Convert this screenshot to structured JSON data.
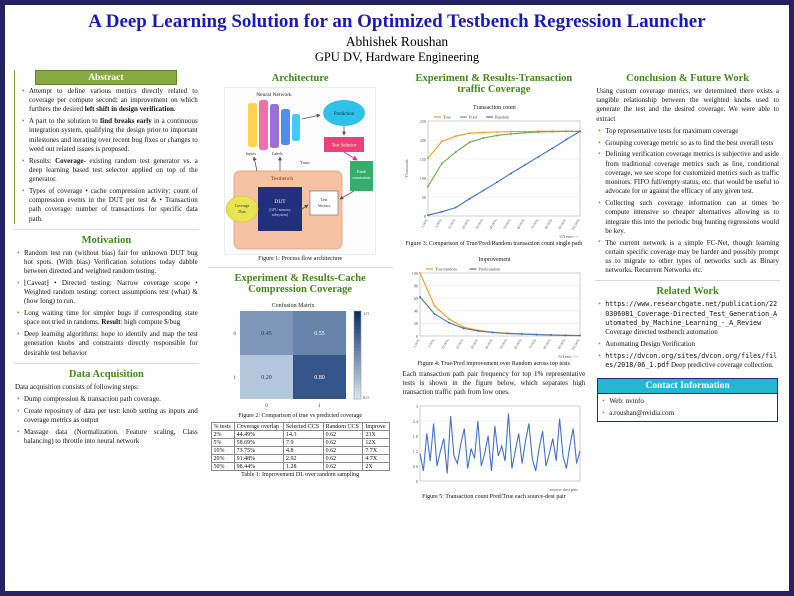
{
  "poster": {
    "title": "A Deep Learning Solution for an Optimized Testbench Regression Launcher",
    "author": "Abhishek Roushan",
    "affiliation": "GPU DV, Hardware Engineering"
  },
  "abstract": {
    "heading": "Abstract",
    "items": [
      "Attempt to define various metrics directly related to coverage per compute second; an improvement on which furthers the desired **left shift in design verification**.",
      "A part to the solution to **find breaks early** in a continuous integration system, qualifying the design prior to important milestones and iterating over recent bug fixes or changes to weed out related issues is proposed.",
      "Results: **Coverage**- existing random test generator vs. a deep learning based test selector applied on top of the generator.",
      "Types of coverage • cache compression activity: count of compression events in the DUT per test & • Transaction path coverage: number of transactions for specific data path."
    ]
  },
  "motivation": {
    "heading": "Motivation",
    "items": [
      "Random test run (without bias) fair for unknown DUT bug hot spots. (With bias) Verification solutions today dabble between directed and weighted random testing.",
      "⌊Caveat⌋ • Directed testing: Narrow coverage scope • Weighted random testing: correct assumptions test (what) & (how long) to run.",
      "Long waiting time for simpler bugs if corresponding state space not tried in randoms. **Result**: high compute $/bug",
      "Deep learning algorithms: hope to identify and map the test generation knobs and constraints directly responsible for desirable test behavior"
    ]
  },
  "data_acquisition": {
    "heading": "Data Acquisition",
    "intro": "Data acquisition consists of following steps:",
    "items": [
      "Dump compression & transaction path coverage.",
      "Create repository of data per test: knob setting as inputs and coverage metrics as output",
      "Massage data (Normalization. Feature scaling, Class balancing) to throttle into neural network"
    ]
  },
  "architecture": {
    "heading": "Architecture",
    "caption": "Figure 1: Process flow architecture",
    "labels": {
      "neural_network": "Neural Network",
      "prediction": "Prediction",
      "test_selector": "Test Selector",
      "train": "Train",
      "inputs": "Inputs",
      "labels": "Labels",
      "knob1": "Knob",
      "knob2": "constraints",
      "testbench": "Testbench",
      "dut1": "DUT",
      "dut2": "(GPU memory",
      "dut3": "subsystem)",
      "tv1": "Test",
      "tv2": "Vectors",
      "cov1": "Coverage",
      "cov2": "Data"
    }
  },
  "cache_results": {
    "heading": "Experiment & Results-Cache Compression Coverage",
    "figure2_caption": "Figure 2: Comparison of true vs predicted coverage",
    "table": {
      "headers": [
        "% tests",
        "Coverage overlap",
        "Selected CCS",
        "Random CCS",
        "Improve"
      ],
      "rows": [
        [
          "2%",
          "44.49%",
          "14.3",
          "0.62",
          "23X"
        ],
        [
          "5%",
          "58.69%",
          "7.9",
          "0.62",
          "12X"
        ],
        [
          "10%",
          "73.75%",
          "4.8",
          "0.62",
          "7.7X"
        ],
        [
          "20%",
          "91.48%",
          "2.92",
          "0.62",
          "4.7X"
        ],
        [
          "50%",
          "98.44%",
          "1.28",
          "0.62",
          "2X"
        ]
      ],
      "caption": "Table 1: Improvement DL over random sampling"
    }
  },
  "transaction_results": {
    "heading": "Experiment & Results-Transaction traffic Coverage",
    "figure3_caption": "Figure 3: Comparison of True/Pred/Random transaction count single path",
    "figure4_caption": "Figure 4: True/Pred improvement over Random across top tests",
    "paragraph": "Each transaction path pair frequency for top 1% representative tests is shown in the figure below, which separates high transaction traffic path from low ones.",
    "figure5_caption": "Figure 5: Transaction count Pred/True each source-dest pair"
  },
  "conclusion": {
    "heading": "Conclusion & Future Work",
    "intro": "Using custom coverage metrics, we determined there exists a tangible relationship between the weighted knobs used to generate the test and the desired coverage. We were able to extract",
    "items": [
      "Top representative tests for maximum coverage",
      "Grouping coverage metric so as to find the best overall tests",
      "Defining verification coverage metrics is subjective and aside from traditional coverage metrics such as line, conditional coverage, we see scope for customized metrics such as traffic monitors. FIFO full/empty status, etc. that would be useful to advocate for or against the efficacy of any given test.",
      "Collecting such coverage information can at times be compute intensive so cheaper alternatives allowing us to integrate this into the periodic bug hunting regressions would be key.",
      "The current network is a simple FC-Net, though learning certain specific coverage may be harder and possibly prompt us to migrate to other types of networks such as Binary networks. Recurrent Networks etc."
    ]
  },
  "related_work": {
    "heading": "Related Work",
    "items": [
      "`https://www.researchgate.net/publication/220306081_Coverage-Directed_Test_Generation_Automated_by_Machine_Learning_-_A_Review` Coverage directed testbench automation",
      "Automating Design Verification",
      "`https://dvcon.org/sites/dvcon.org/files/files/2018/06_1.pdf` Deep predictive coverage collection."
    ]
  },
  "contact": {
    "heading": "Contact Information",
    "items": [
      "Web: nvinfo",
      "a.roushan@nvidia.com"
    ]
  },
  "chart_data": [
    {
      "id": "fig2",
      "type": "heatmap",
      "title": "Confusion Matrix",
      "x_ticklabels": [
        "0",
        "1"
      ],
      "y_ticklabels": [
        "0",
        "1"
      ],
      "matrix": [
        [
          0.45,
          0.55
        ],
        [
          0.2,
          0.8
        ]
      ],
      "colormap": "Blues",
      "colorbar": true
    },
    {
      "id": "fig3",
      "type": "line",
      "title": "Transaction count",
      "ylabel": "Thousands",
      "xlabel": "%Tests-->",
      "categories": [
        "1.00%",
        "5.00%",
        "10.00%",
        "20.00%",
        "30.00%",
        "40.00%",
        "50.00%",
        "60.00%",
        "70.00%",
        "80.00%",
        "90.00%",
        "100.00%"
      ],
      "ylim": [
        0,
        250
      ],
      "legend_position": "top",
      "grid": true,
      "series": [
        {
          "name": "True",
          "color": "#f59a23",
          "values": [
            152,
            196,
            210,
            218,
            220,
            221,
            222,
            222,
            223,
            223,
            223,
            223
          ]
        },
        {
          "name": "Pred",
          "color": "#6aa84f",
          "values": [
            78,
            138,
            168,
            194,
            205,
            212,
            216,
            219,
            221,
            222,
            223,
            223
          ]
        },
        {
          "name": "Random",
          "color": "#4472c4",
          "values": [
            2,
            11,
            22,
            45,
            67,
            89,
            112,
            134,
            156,
            178,
            201,
            223
          ]
        }
      ]
    },
    {
      "id": "fig4",
      "type": "line",
      "title": "Improvement",
      "xlabel": "%Tests -->",
      "categories": [
        "1.00%",
        "5.00%",
        "10.00%",
        "20.00%",
        "30.00%",
        "40.00%",
        "50.00%",
        "60.00%",
        "70.00%",
        "80.00%",
        "90.00%",
        "100.00%"
      ],
      "ylim": [
        0,
        100
      ],
      "legend_position": "top",
      "grid": true,
      "series": [
        {
          "name": "True/random",
          "color": "#f59a23",
          "values": [
            100,
            48,
            27,
            14,
            9,
            6,
            4.5,
            3.5,
            2.5,
            1.8,
            1.2,
            0.8
          ]
        },
        {
          "name": "Pred/random",
          "color": "#4472c4",
          "values": [
            62,
            35,
            21,
            12,
            8,
            5.5,
            4,
            3,
            2.2,
            1.6,
            1,
            0.7
          ]
        }
      ]
    },
    {
      "id": "fig5",
      "type": "line",
      "title": "",
      "xlabel": "source-dest pair",
      "ylim": [
        0,
        3
      ],
      "grid": true,
      "series": [
        {
          "name": "Pred/True",
          "color": "#4472c4",
          "markers": false,
          "values": [
            1.1,
            0.4,
            1.9,
            0.8,
            2.3,
            0.6,
            1.2,
            1.7,
            0.3,
            2.6,
            1.0,
            0.7,
            1.5,
            2.1,
            0.5,
            1.3,
            0.9,
            2.4,
            0.6,
            1.1,
            1.8,
            0.4,
            2.2,
            1.0,
            1.4,
            0.8,
            2.7,
            0.5,
            1.2,
            1.9,
            0.7,
            1.6,
            2.3,
            0.9,
            0.4,
            1.3,
            2.0,
            0.6,
            1.1,
            1.7,
            0.8,
            2.5,
            1.0,
            0.5,
            1.4,
            2.1,
            0.7,
            1.2
          ]
        }
      ]
    }
  ]
}
